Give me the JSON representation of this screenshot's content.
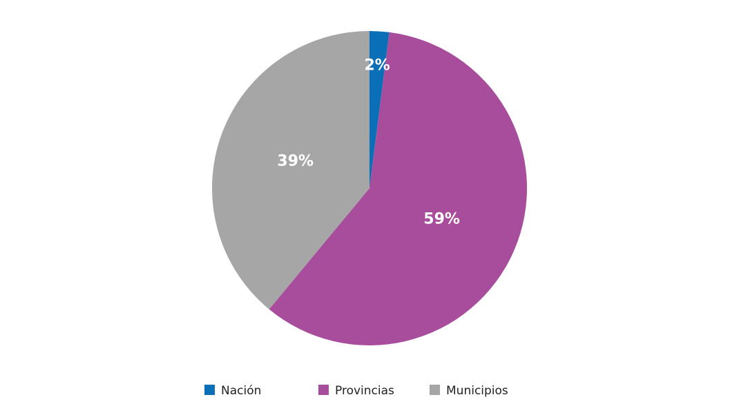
{
  "chart_data": {
    "type": "pie",
    "categories": [
      "Nación",
      "Provincias",
      "Municipios"
    ],
    "values": [
      2,
      59,
      39
    ],
    "value_labels": [
      "2%",
      "59%",
      "39%"
    ],
    "colors": [
      "#0b6fb8",
      "#a84c9c",
      "#a6a6a6"
    ],
    "legend": "bottom"
  }
}
